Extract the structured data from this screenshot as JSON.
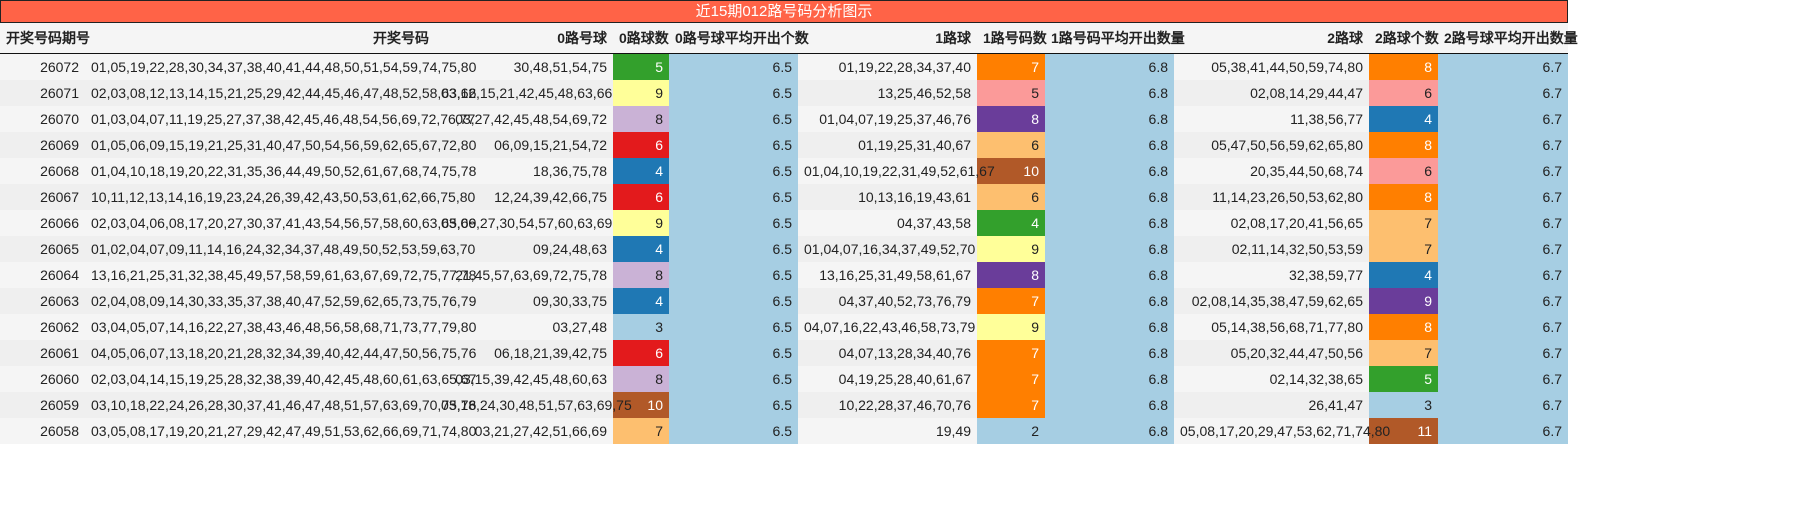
{
  "title": "近15期012路号码分析图示",
  "headers": [
    "开奖号码期号",
    "开奖号码",
    "0路号球",
    "0路球数",
    "0路号球平均开出个数",
    "1路球",
    "1路号码数",
    "1路号码平均开出数量",
    "2路球",
    "2路球个数",
    "2路号球平均开出数量"
  ],
  "avg_color": "#a6cee3",
  "rows": [
    {
      "issue": "26072",
      "numbers": "01,05,19,22,28,30,34,37,38,40,41,44,48,50,51,54,59,74,75,80",
      "r0": "30,48,51,54,75",
      "c0": "5",
      "c0_color": "#33a02c",
      "a0": "6.5",
      "r1": "01,19,22,28,34,37,40",
      "c1": "7",
      "c1_color": "#ff7f00",
      "a1": "6.8",
      "r2": "05,38,41,44,50,59,74,80",
      "c2": "8",
      "c2_color": "#ff7f00",
      "a2": "6.7"
    },
    {
      "issue": "26071",
      "numbers": "02,03,08,12,13,14,15,21,25,29,42,44,45,46,47,48,52,58,63,66",
      "r0": "03,12,15,21,42,45,48,63,66",
      "c0": "9",
      "c0_color": "#ffff99",
      "a0": "6.5",
      "r1": "13,25,46,52,58",
      "c1": "5",
      "c1_color": "#fb9a99",
      "a1": "6.8",
      "r2": "02,08,14,29,44,47",
      "c2": "6",
      "c2_color": "#fb9a99",
      "a2": "6.7"
    },
    {
      "issue": "26070",
      "numbers": "01,03,04,07,11,19,25,27,37,38,42,45,46,48,54,56,69,72,76,77",
      "r0": "03,27,42,45,48,54,69,72",
      "c0": "8",
      "c0_color": "#cab2d6",
      "a0": "6.5",
      "r1": "01,04,07,19,25,37,46,76",
      "c1": "8",
      "c1_color": "#6a3d9a",
      "a1": "6.8",
      "r2": "11,38,56,77",
      "c2": "4",
      "c2_color": "#1f78b4",
      "a2": "6.7"
    },
    {
      "issue": "26069",
      "numbers": "01,05,06,09,15,19,21,25,31,40,47,50,54,56,59,62,65,67,72,80",
      "r0": "06,09,15,21,54,72",
      "c0": "6",
      "c0_color": "#e31a1c",
      "a0": "6.5",
      "r1": "01,19,25,31,40,67",
      "c1": "6",
      "c1_color": "#fdbf6f",
      "a1": "6.8",
      "r2": "05,47,50,56,59,62,65,80",
      "c2": "8",
      "c2_color": "#ff7f00",
      "a2": "6.7"
    },
    {
      "issue": "26068",
      "numbers": "01,04,10,18,19,20,22,31,35,36,44,49,50,52,61,67,68,74,75,78",
      "r0": "18,36,75,78",
      "c0": "4",
      "c0_color": "#1f78b4",
      "a0": "6.5",
      "r1": "01,04,10,19,22,31,49,52,61,67",
      "c1": "10",
      "c1_color": "#b15928",
      "a1": "6.8",
      "r2": "20,35,44,50,68,74",
      "c2": "6",
      "c2_color": "#fb9a99",
      "a2": "6.7"
    },
    {
      "issue": "26067",
      "numbers": "10,11,12,13,14,16,19,23,24,26,39,42,43,50,53,61,62,66,75,80",
      "r0": "12,24,39,42,66,75",
      "c0": "6",
      "c0_color": "#e31a1c",
      "a0": "6.5",
      "r1": "10,13,16,19,43,61",
      "c1": "6",
      "c1_color": "#fdbf6f",
      "a1": "6.8",
      "r2": "11,14,23,26,50,53,62,80",
      "c2": "8",
      "c2_color": "#ff7f00",
      "a2": "6.7"
    },
    {
      "issue": "26066",
      "numbers": "02,03,04,06,08,17,20,27,30,37,41,43,54,56,57,58,60,63,65,69",
      "r0": "03,06,27,30,54,57,60,63,69",
      "c0": "9",
      "c0_color": "#ffff99",
      "a0": "6.5",
      "r1": "04,37,43,58",
      "c1": "4",
      "c1_color": "#33a02c",
      "a1": "6.8",
      "r2": "02,08,17,20,41,56,65",
      "c2": "7",
      "c2_color": "#fdbf6f",
      "a2": "6.7"
    },
    {
      "issue": "26065",
      "numbers": "01,02,04,07,09,11,14,16,24,32,34,37,48,49,50,52,53,59,63,70",
      "r0": "09,24,48,63",
      "c0": "4",
      "c0_color": "#1f78b4",
      "a0": "6.5",
      "r1": "01,04,07,16,34,37,49,52,70",
      "c1": "9",
      "c1_color": "#ffff99",
      "a1": "6.8",
      "r2": "02,11,14,32,50,53,59",
      "c2": "7",
      "c2_color": "#fdbf6f",
      "a2": "6.7"
    },
    {
      "issue": "26064",
      "numbers": "13,16,21,25,31,32,38,45,49,57,58,59,61,63,67,69,72,75,77,78",
      "r0": "21,45,57,63,69,72,75,78",
      "c0": "8",
      "c0_color": "#cab2d6",
      "a0": "6.5",
      "r1": "13,16,25,31,49,58,61,67",
      "c1": "8",
      "c1_color": "#6a3d9a",
      "a1": "6.8",
      "r2": "32,38,59,77",
      "c2": "4",
      "c2_color": "#1f78b4",
      "a2": "6.7"
    },
    {
      "issue": "26063",
      "numbers": "02,04,08,09,14,30,33,35,37,38,40,47,52,59,62,65,73,75,76,79",
      "r0": "09,30,33,75",
      "c0": "4",
      "c0_color": "#1f78b4",
      "a0": "6.5",
      "r1": "04,37,40,52,73,76,79",
      "c1": "7",
      "c1_color": "#ff7f00",
      "a1": "6.8",
      "r2": "02,08,14,35,38,47,59,62,65",
      "c2": "9",
      "c2_color": "#6a3d9a",
      "a2": "6.7"
    },
    {
      "issue": "26062",
      "numbers": "03,04,05,07,14,16,22,27,38,43,46,48,56,58,68,71,73,77,79,80",
      "r0": "03,27,48",
      "c0": "3",
      "c0_color": "#a6cee3",
      "a0": "6.5",
      "r1": "04,07,16,22,43,46,58,73,79",
      "c1": "9",
      "c1_color": "#ffff99",
      "a1": "6.8",
      "r2": "05,14,38,56,68,71,77,80",
      "c2": "8",
      "c2_color": "#ff7f00",
      "a2": "6.7"
    },
    {
      "issue": "26061",
      "numbers": "04,05,06,07,13,18,20,21,28,32,34,39,40,42,44,47,50,56,75,76",
      "r0": "06,18,21,39,42,75",
      "c0": "6",
      "c0_color": "#e31a1c",
      "a0": "6.5",
      "r1": "04,07,13,28,34,40,76",
      "c1": "7",
      "c1_color": "#ff7f00",
      "a1": "6.8",
      "r2": "05,20,32,44,47,50,56",
      "c2": "7",
      "c2_color": "#fdbf6f",
      "a2": "6.7"
    },
    {
      "issue": "26060",
      "numbers": "02,03,04,14,15,19,25,28,32,38,39,40,42,45,48,60,61,63,65,67",
      "r0": "03,15,39,42,45,48,60,63",
      "c0": "8",
      "c0_color": "#cab2d6",
      "a0": "6.5",
      "r1": "04,19,25,28,40,61,67",
      "c1": "7",
      "c1_color": "#ff7f00",
      "a1": "6.8",
      "r2": "02,14,32,38,65",
      "c2": "5",
      "c2_color": "#33a02c",
      "a2": "6.7"
    },
    {
      "issue": "26059",
      "numbers": "03,10,18,22,24,26,28,30,37,41,46,47,48,51,57,63,69,70,75,76",
      "r0": "03,18,24,30,48,51,57,63,69,75",
      "c0": "10",
      "c0_color": "#b15928",
      "a0": "6.5",
      "r1": "10,22,28,37,46,70,76",
      "c1": "7",
      "c1_color": "#ff7f00",
      "a1": "6.8",
      "r2": "26,41,47",
      "c2": "3",
      "c2_color": "#a6cee3",
      "a2": "6.7"
    },
    {
      "issue": "26058",
      "numbers": "03,05,08,17,19,20,21,27,29,42,47,49,51,53,62,66,69,71,74,80",
      "r0": "03,21,27,42,51,66,69",
      "c0": "7",
      "c0_color": "#fdbf6f",
      "a0": "6.5",
      "r1": "19,49",
      "c1": "2",
      "c1_color": "#a6cee3",
      "a1": "6.8",
      "r2": "05,08,17,20,29,47,53,62,71,74,80",
      "c2": "11",
      "c2_color": "#b15928",
      "a2": "6.7"
    }
  ]
}
